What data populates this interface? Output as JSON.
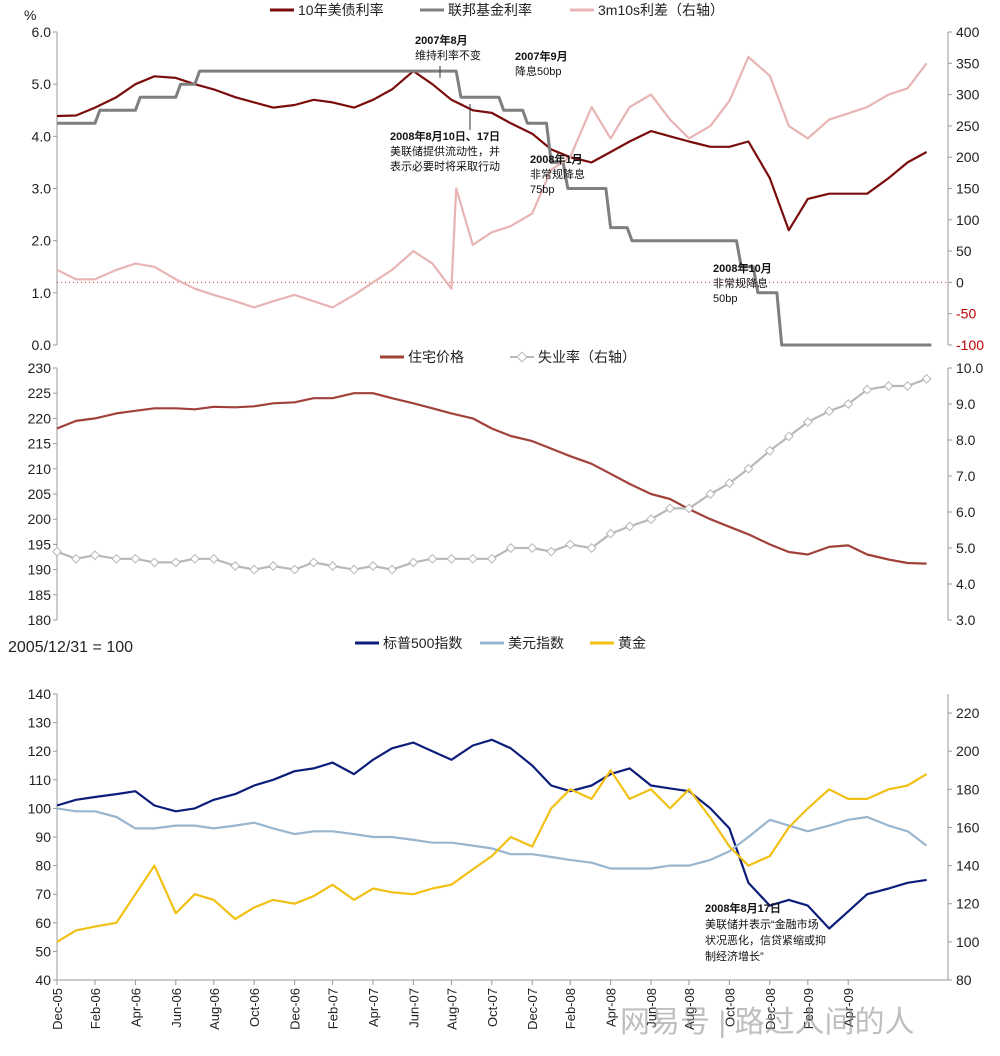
{
  "chart_data": [
    {
      "type": "line",
      "y_unit_label": "%",
      "legend": [
        {
          "name": "10年美债利率",
          "color": "#7b0c0c"
        },
        {
          "name": "联邦基金利率",
          "color": "#7f7f7f"
        },
        {
          "name": "3m10s利差（右轴）",
          "color": "#e8b4b4"
        }
      ],
      "left_axis": {
        "range": [
          0,
          6
        ],
        "ticks": [
          "0.0",
          "1.0",
          "2.0",
          "3.0",
          "4.0",
          "5.0",
          "6.0"
        ]
      },
      "right_axis": {
        "range": [
          -100,
          400
        ],
        "ticks": [
          "-100",
          "-50",
          "0",
          "50",
          "100",
          "150",
          "200",
          "250",
          "300",
          "350",
          "400"
        ],
        "negative_color": "#c00000"
      },
      "series": [
        {
          "name": "10年美债利率",
          "axis": "left",
          "color": "#7b0c0c",
          "x": [
            2005.92,
            2006.0,
            2006.08,
            2006.17,
            2006.25,
            2006.33,
            2006.42,
            2006.5,
            2006.58,
            2006.67,
            2006.75,
            2006.83,
            2006.92,
            2007.0,
            2007.08,
            2007.17,
            2007.25,
            2007.33,
            2007.42,
            2007.5,
            2007.58,
            2007.67,
            2007.75,
            2007.83,
            2007.92,
            2008.0,
            2008.08,
            2008.17,
            2008.25,
            2008.33,
            2008.42,
            2008.5,
            2008.58,
            2008.67,
            2008.75,
            2008.83,
            2008.92,
            2009.0,
            2009.08,
            2009.17,
            2009.25,
            2009.33,
            2009.42,
            2009.5,
            2009.58
          ],
          "values": [
            4.39,
            4.4,
            4.55,
            4.75,
            5.0,
            5.15,
            5.12,
            5.0,
            4.9,
            4.75,
            4.65,
            4.55,
            4.6,
            4.7,
            4.65,
            4.55,
            4.7,
            4.9,
            5.25,
            5.0,
            4.7,
            4.5,
            4.45,
            4.25,
            4.05,
            3.75,
            3.6,
            3.5,
            3.7,
            3.9,
            4.1,
            4.0,
            3.9,
            3.8,
            3.8,
            3.9,
            3.2,
            2.2,
            2.8,
            2.9,
            2.9,
            2.9,
            3.2,
            3.5,
            3.7
          ]
        },
        {
          "name": "联邦基金利率",
          "axis": "left",
          "color": "#7f7f7f",
          "x": [
            2005.92,
            2006.08,
            2006.1,
            2006.25,
            2006.27,
            2006.42,
            2006.44,
            2006.5,
            2006.52,
            2007.6,
            2007.62,
            2007.78,
            2007.8,
            2007.88,
            2007.9,
            2007.98,
            2008.0,
            2008.05,
            2008.07,
            2008.23,
            2008.25,
            2008.32,
            2008.34,
            2008.78,
            2008.8,
            2008.85,
            2008.87,
            2008.95,
            2008.97,
            2009.6
          ],
          "values": [
            4.25,
            4.25,
            4.5,
            4.5,
            4.75,
            4.75,
            5.0,
            5.0,
            5.25,
            5.25,
            4.75,
            4.75,
            4.5,
            4.5,
            4.25,
            4.25,
            3.5,
            3.5,
            3.0,
            3.0,
            2.25,
            2.25,
            2.0,
            2.0,
            1.5,
            1.5,
            1.0,
            1.0,
            0.0,
            0.0
          ]
        },
        {
          "name": "3m10s利差（右轴）",
          "axis": "right",
          "color": "#e8b4b4",
          "x": [
            2005.92,
            2006.0,
            2006.08,
            2006.17,
            2006.25,
            2006.33,
            2006.42,
            2006.5,
            2006.58,
            2006.67,
            2006.75,
            2006.83,
            2006.92,
            2007.0,
            2007.08,
            2007.17,
            2007.25,
            2007.33,
            2007.42,
            2007.5,
            2007.58,
            2007.6,
            2007.67,
            2007.75,
            2007.83,
            2007.92,
            2008.0,
            2008.08,
            2008.17,
            2008.25,
            2008.33,
            2008.42,
            2008.5,
            2008.58,
            2008.67,
            2008.75,
            2008.83,
            2008.92,
            2009.0,
            2009.08,
            2009.17,
            2009.25,
            2009.33,
            2009.42,
            2009.5,
            2009.58
          ],
          "values": [
            20,
            5,
            5,
            20,
            30,
            25,
            5,
            -10,
            -20,
            -30,
            -40,
            -30,
            -20,
            -30,
            -40,
            -20,
            0,
            20,
            50,
            30,
            -10,
            150,
            60,
            80,
            90,
            110,
            180,
            200,
            280,
            230,
            280,
            300,
            260,
            230,
            250,
            290,
            360,
            330,
            250,
            230,
            260,
            270,
            280,
            300,
            310,
            350
          ]
        }
      ],
      "annotations": [
        {
          "date": "2007年8月",
          "text": "维持利率不变"
        },
        {
          "date": "2007年9月",
          "text": "降息50bp"
        },
        {
          "date": "2008年8月10日、17日",
          "text": "美联储提供流动性，并",
          "text2": "表示必要时将采取行动"
        },
        {
          "date": "2008年1月",
          "text": "非常规降息",
          "text2": "75bp"
        },
        {
          "date": "2008年10月",
          "text": "非常规降息",
          "text2": "50bp"
        }
      ]
    },
    {
      "type": "line",
      "legend": [
        {
          "name": "住宅价格",
          "color": "#a0413a"
        },
        {
          "name": "失业率（右轴）",
          "color": "#b8b8b8"
        }
      ],
      "left_axis": {
        "range": [
          180,
          230
        ],
        "ticks": [
          "180",
          "185",
          "190",
          "195",
          "200",
          "205",
          "210",
          "215",
          "220",
          "225",
          "230"
        ]
      },
      "right_axis": {
        "range": [
          3.0,
          10.0
        ],
        "ticks": [
          "3.0",
          "4.0",
          "5.0",
          "6.0",
          "7.0",
          "8.0",
          "9.0",
          "10.0"
        ]
      },
      "series": [
        {
          "name": "住宅价格",
          "axis": "left",
          "color": "#a0413a",
          "x": [
            2005.92,
            2006.0,
            2006.08,
            2006.17,
            2006.25,
            2006.33,
            2006.42,
            2006.5,
            2006.58,
            2006.67,
            2006.75,
            2006.83,
            2006.92,
            2007.0,
            2007.08,
            2007.17,
            2007.25,
            2007.33,
            2007.42,
            2007.5,
            2007.58,
            2007.67,
            2007.75,
            2007.83,
            2007.92,
            2008.0,
            2008.08,
            2008.17,
            2008.25,
            2008.33,
            2008.42,
            2008.5,
            2008.58,
            2008.67,
            2008.75,
            2008.83,
            2008.92,
            2009.0,
            2009.08,
            2009.17,
            2009.25,
            2009.33,
            2009.42,
            2009.5,
            2009.58
          ],
          "values": [
            218,
            219.5,
            220,
            221,
            221.5,
            222,
            222,
            221.8,
            222.3,
            222.2,
            222.4,
            223,
            223.2,
            224,
            224,
            225,
            225,
            224,
            223,
            222,
            221,
            220,
            218,
            216.5,
            215.5,
            214,
            212.5,
            211,
            209,
            207,
            205,
            204,
            202,
            200,
            198.5,
            197,
            195,
            193.5,
            193,
            194.5,
            194.8,
            193,
            192,
            191.3,
            191.2
          ]
        },
        {
          "name": "失业率（右轴）",
          "axis": "right",
          "color": "#b8b8b8",
          "x": [
            2005.92,
            2006.0,
            2006.08,
            2006.17,
            2006.25,
            2006.33,
            2006.42,
            2006.5,
            2006.58,
            2006.67,
            2006.75,
            2006.83,
            2006.92,
            2007.0,
            2007.08,
            2007.17,
            2007.25,
            2007.33,
            2007.42,
            2007.5,
            2007.58,
            2007.67,
            2007.75,
            2007.83,
            2007.92,
            2008.0,
            2008.08,
            2008.17,
            2008.25,
            2008.33,
            2008.42,
            2008.5,
            2008.58,
            2008.67,
            2008.75,
            2008.83,
            2008.92,
            2009.0,
            2009.08,
            2009.17,
            2009.25,
            2009.33,
            2009.42,
            2009.5,
            2009.58
          ],
          "values": [
            4.9,
            4.7,
            4.8,
            4.7,
            4.7,
            4.6,
            4.6,
            4.7,
            4.7,
            4.5,
            4.4,
            4.5,
            4.4,
            4.6,
            4.5,
            4.4,
            4.5,
            4.4,
            4.6,
            4.7,
            4.7,
            4.7,
            4.7,
            5.0,
            5.0,
            4.9,
            5.1,
            5.0,
            5.4,
            5.6,
            5.8,
            6.1,
            6.1,
            6.5,
            6.8,
            7.2,
            7.7,
            8.1,
            8.5,
            8.8,
            9.0,
            9.4,
            9.5,
            9.5,
            9.7
          ]
        }
      ]
    },
    {
      "type": "line",
      "base_label": "2005/12/31 = 100",
      "legend": [
        {
          "name": "标普500指数",
          "color": "#0d1e7a"
        },
        {
          "name": "美元指数",
          "color": "#98b6d0"
        },
        {
          "name": "黄金",
          "color": "#f2c014"
        }
      ],
      "left_axis": {
        "range": [
          40,
          140
        ],
        "ticks": [
          "40",
          "50",
          "60",
          "70",
          "80",
          "90",
          "100",
          "110",
          "120",
          "130",
          "140"
        ]
      },
      "right_axis": {
        "range": [
          80,
          230
        ],
        "ticks": [
          "80",
          "100",
          "120",
          "140",
          "160",
          "180",
          "200",
          "220"
        ]
      },
      "series": [
        {
          "name": "标普500指数",
          "axis": "left",
          "color": "#0d1e7a",
          "x": [
            2005.92,
            2006.0,
            2006.08,
            2006.17,
            2006.25,
            2006.33,
            2006.42,
            2006.5,
            2006.58,
            2006.67,
            2006.75,
            2006.83,
            2006.92,
            2007.0,
            2007.08,
            2007.17,
            2007.25,
            2007.33,
            2007.42,
            2007.5,
            2007.58,
            2007.67,
            2007.75,
            2007.83,
            2007.92,
            2008.0,
            2008.08,
            2008.17,
            2008.25,
            2008.33,
            2008.42,
            2008.5,
            2008.58,
            2008.67,
            2008.75,
            2008.83,
            2008.92,
            2009.0,
            2009.08,
            2009.17,
            2009.25,
            2009.33,
            2009.42,
            2009.5,
            2009.58
          ],
          "values": [
            101,
            103,
            104,
            105,
            106,
            101,
            99,
            100,
            103,
            105,
            108,
            110,
            113,
            114,
            116,
            112,
            117,
            121,
            123,
            120,
            117,
            122,
            124,
            121,
            115,
            108,
            106,
            108,
            112,
            114,
            108,
            107,
            106,
            100,
            93,
            74,
            66,
            68,
            66,
            58,
            64,
            70,
            72,
            74,
            75
          ]
        },
        {
          "name": "美元指数",
          "axis": "left",
          "color": "#98b6d0",
          "x": [
            2005.92,
            2006.0,
            2006.08,
            2006.17,
            2006.25,
            2006.33,
            2006.42,
            2006.5,
            2006.58,
            2006.67,
            2006.75,
            2006.83,
            2006.92,
            2007.0,
            2007.08,
            2007.17,
            2007.25,
            2007.33,
            2007.42,
            2007.5,
            2007.58,
            2007.67,
            2007.75,
            2007.83,
            2007.92,
            2008.0,
            2008.08,
            2008.17,
            2008.25,
            2008.33,
            2008.42,
            2008.5,
            2008.58,
            2008.67,
            2008.75,
            2008.83,
            2008.92,
            2009.0,
            2009.08,
            2009.17,
            2009.25,
            2009.33,
            2009.42,
            2009.5,
            2009.58
          ],
          "values": [
            100,
            99,
            99,
            97,
            93,
            93,
            94,
            94,
            93,
            94,
            95,
            93,
            91,
            92,
            92,
            91,
            90,
            90,
            89,
            88,
            88,
            87,
            86,
            84,
            84,
            83,
            82,
            81,
            79,
            79,
            79,
            80,
            80,
            82,
            85,
            90,
            96,
            94,
            92,
            94,
            96,
            97,
            94,
            92,
            87
          ]
        },
        {
          "name": "黄金",
          "axis": "right",
          "color": "#f2c014",
          "x": [
            2005.92,
            2006.0,
            2006.08,
            2006.17,
            2006.25,
            2006.33,
            2006.42,
            2006.5,
            2006.58,
            2006.67,
            2006.75,
            2006.83,
            2006.92,
            2007.0,
            2007.08,
            2007.17,
            2007.25,
            2007.33,
            2007.42,
            2007.5,
            2007.58,
            2007.67,
            2007.75,
            2007.83,
            2007.92,
            2008.0,
            2008.08,
            2008.17,
            2008.25,
            2008.33,
            2008.42,
            2008.5,
            2008.58,
            2008.67,
            2008.75,
            2008.83,
            2008.92,
            2009.0,
            2009.08,
            2009.17,
            2009.25,
            2009.33,
            2009.42,
            2009.5,
            2009.58
          ],
          "values": [
            100,
            106,
            108,
            110,
            125,
            140,
            115,
            125,
            122,
            112,
            118,
            122,
            120,
            124,
            130,
            122,
            128,
            126,
            125,
            128,
            130,
            138,
            145,
            155,
            150,
            170,
            180,
            175,
            190,
            175,
            180,
            170,
            180,
            165,
            150,
            140,
            145,
            160,
            170,
            180,
            175,
            175,
            180,
            182,
            188
          ]
        }
      ],
      "annotations": [
        {
          "date": "2008年8月17日",
          "text": "美联储并表示“金融市场",
          "text2": "状况恶化，信贷紧缩或抑",
          "text3": "制经济增长”"
        }
      ]
    }
  ],
  "x_axis": {
    "labels": [
      "Dec-05",
      "Feb-06",
      "Apr-06",
      "Jun-06",
      "Aug-06",
      "Oct-06",
      "Dec-06",
      "Feb-07",
      "Apr-07",
      "Jun-07",
      "Aug-07",
      "Oct-07",
      "Dec-07",
      "Feb-08",
      "Apr-08",
      "Jun-08",
      "Aug-08",
      "Oct-08",
      "Dec-08",
      "Feb-09",
      "Apr-09"
    ],
    "positions": [
      2005.92,
      2006.08,
      2006.25,
      2006.42,
      2006.58,
      2006.75,
      2006.92,
      2007.08,
      2007.25,
      2007.42,
      2007.58,
      2007.75,
      2007.92,
      2008.08,
      2008.25,
      2008.42,
      2008.58,
      2008.75,
      2008.92,
      2009.08,
      2009.25
    ]
  },
  "watermark": "网易号 | 路过人间的人"
}
